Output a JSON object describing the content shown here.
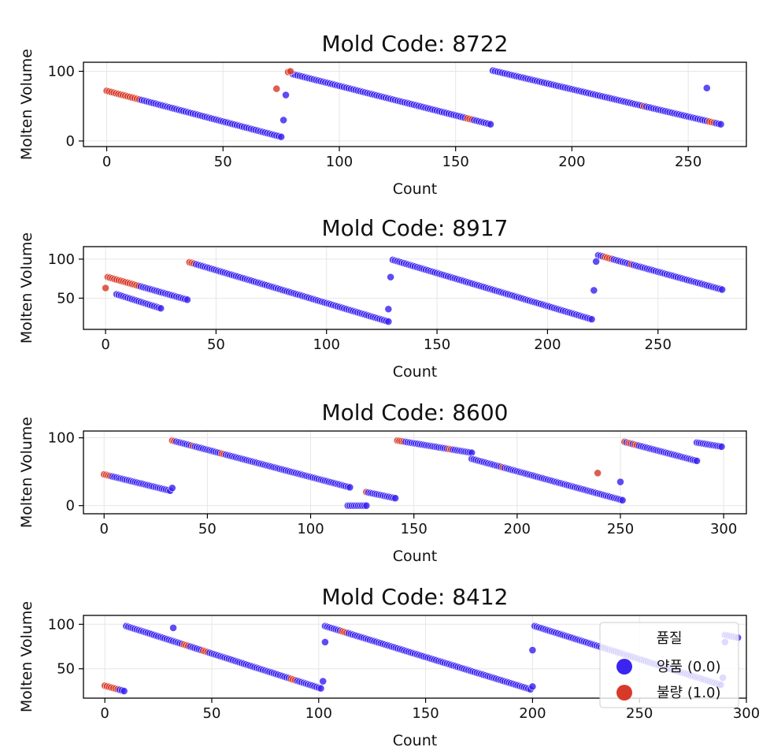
{
  "legend": {
    "title": "품질",
    "entries": [
      {
        "label": "양품 (0.0)",
        "color": "#3b24f0"
      },
      {
        "label": "불량 (1.0)",
        "color": "#d83a2a"
      }
    ]
  },
  "colors": {
    "good": "#3b24f0",
    "bad": "#d83a2a"
  },
  "chart_data": [
    {
      "type": "scatter",
      "title": "Mold Code: 8722",
      "xlabel": "Count",
      "ylabel": "Molten Volume",
      "xlim": [
        -10,
        275
      ],
      "ylim": [
        -8,
        113
      ],
      "xticks": [
        0,
        50,
        100,
        150,
        200,
        250
      ],
      "yticks": [
        0,
        100
      ],
      "grid": true,
      "segments": [
        {
          "x_start": 0,
          "x_end": 75,
          "y_start": 72,
          "y_end": 6,
          "defect_at": [
            0,
            1,
            2,
            3,
            4,
            5,
            6,
            7,
            8,
            9,
            10,
            11,
            12,
            13,
            14
          ]
        },
        {
          "x_start": 80,
          "x_end": 165,
          "y_start": 96,
          "y_end": 24,
          "defect_at": [
            155,
            156,
            157
          ]
        },
        {
          "x_start": 166,
          "x_end": 264,
          "y_start": 101,
          "y_end": 24,
          "defect_at": [
            231,
            259,
            260,
            261
          ]
        }
      ],
      "points": [
        {
          "x": 73,
          "y": 75,
          "defect": 1
        },
        {
          "x": 76,
          "y": 30,
          "defect": 0
        },
        {
          "x": 77,
          "y": 66,
          "defect": 0
        },
        {
          "x": 78,
          "y": 99,
          "defect": 1
        },
        {
          "x": 79,
          "y": 100,
          "defect": 1
        },
        {
          "x": 258,
          "y": 76,
          "defect": 0
        }
      ]
    },
    {
      "type": "scatter",
      "title": "Mold Code: 8917",
      "xlabel": "Count",
      "ylabel": "Molten Volume",
      "xlim": [
        -10,
        290
      ],
      "ylim": [
        10,
        116
      ],
      "xticks": [
        0,
        50,
        100,
        150,
        200,
        250
      ],
      "yticks": [
        50,
        100
      ],
      "grid": true,
      "segments": [
        {
          "x_start": 1,
          "x_end": 37,
          "y_start": 77,
          "y_end": 48,
          "defect_at": [
            1,
            2,
            3,
            4,
            5,
            6,
            7,
            8,
            9,
            10,
            11,
            12,
            13,
            14,
            15
          ]
        },
        {
          "x_start": 5,
          "x_end": 25,
          "y_start": 55,
          "y_end": 37,
          "defect_at": []
        },
        {
          "x_start": 38,
          "x_end": 128,
          "y_start": 96,
          "y_end": 20,
          "defect_at": [
            38,
            39,
            40
          ]
        },
        {
          "x_start": 130,
          "x_end": 220,
          "y_start": 99,
          "y_end": 23,
          "defect_at": []
        },
        {
          "x_start": 223,
          "x_end": 279,
          "y_start": 105,
          "y_end": 61,
          "defect_at": [
            226,
            227,
            228,
            229,
            238
          ]
        }
      ],
      "points": [
        {
          "x": 0,
          "y": 63,
          "defect": 1
        },
        {
          "x": 128,
          "y": 36,
          "defect": 0
        },
        {
          "x": 129,
          "y": 77,
          "defect": 0
        },
        {
          "x": 221,
          "y": 60,
          "defect": 0
        },
        {
          "x": 222,
          "y": 97,
          "defect": 0
        }
      ]
    },
    {
      "type": "scatter",
      "title": "Mold Code: 8600",
      "xlabel": "Count",
      "ylabel": "Molten Volume",
      "xlim": [
        -10,
        311
      ],
      "ylim": [
        -12,
        110
      ],
      "xticks": [
        0,
        50,
        100,
        150,
        200,
        250,
        300
      ],
      "yticks": [
        0,
        100
      ],
      "grid": true,
      "segments": [
        {
          "x_start": 0,
          "x_end": 32,
          "y_start": 46,
          "y_end": 22,
          "defect_at": [
            0,
            1,
            2,
            3
          ]
        },
        {
          "x_start": 33,
          "x_end": 119,
          "y_start": 96,
          "y_end": 27,
          "defect_at": [
            33,
            34,
            43,
            57,
            58
          ]
        },
        {
          "x_start": 118,
          "x_end": 127,
          "y_start": 0,
          "y_end": 0,
          "defect_at": []
        },
        {
          "x_start": 127,
          "x_end": 141,
          "y_start": 20,
          "y_end": 11,
          "defect_at": [
            127
          ]
        },
        {
          "x_start": 142,
          "x_end": 178,
          "y_start": 96,
          "y_end": 78,
          "defect_at": [
            142,
            143,
            144,
            145,
            167,
            168
          ]
        },
        {
          "x_start": 178,
          "x_end": 251,
          "y_start": 69,
          "y_end": 8,
          "defect_at": [
            193
          ]
        },
        {
          "x_start": 252,
          "x_end": 287,
          "y_start": 94,
          "y_end": 66,
          "defect_at": [
            252,
            254,
            255,
            257,
            258
          ]
        },
        {
          "x_start": 287,
          "x_end": 299,
          "y_start": 93,
          "y_end": 87,
          "defect_at": []
        }
      ],
      "points": [
        {
          "x": 33,
          "y": 26,
          "defect": 0
        },
        {
          "x": 239,
          "y": 48,
          "defect": 1
        },
        {
          "x": 250,
          "y": 35,
          "defect": 0
        }
      ]
    },
    {
      "type": "scatter",
      "title": "Mold Code: 8412",
      "xlabel": "Count",
      "ylabel": "Molten Volume",
      "xlim": [
        -10,
        300
      ],
      "ylim": [
        17,
        110
      ],
      "xticks": [
        0,
        50,
        100,
        150,
        200,
        250,
        300
      ],
      "yticks": [
        50,
        100
      ],
      "grid": true,
      "legend_position": "lower right",
      "segments": [
        {
          "x_start": 0,
          "x_end": 9,
          "y_start": 31,
          "y_end": 25,
          "defect_at": [
            0,
            1,
            2,
            3,
            4,
            5,
            6
          ]
        },
        {
          "x_start": 10,
          "x_end": 101,
          "y_start": 98,
          "y_end": 28,
          "defect_at": [
            37,
            38,
            39,
            46,
            47,
            48,
            87,
            88,
            89
          ]
        },
        {
          "x_start": 103,
          "x_end": 199,
          "y_start": 98,
          "y_end": 27,
          "defect_at": [
            111,
            112,
            113
          ]
        },
        {
          "x_start": 201,
          "x_end": 288,
          "y_start": 98,
          "y_end": 32,
          "defect_at": [
            262
          ]
        },
        {
          "x_start": 290,
          "x_end": 296,
          "y_start": 88,
          "y_end": 85,
          "defect_at": []
        }
      ],
      "points": [
        {
          "x": 32,
          "y": 96,
          "defect": 0
        },
        {
          "x": 102,
          "y": 36,
          "defect": 0
        },
        {
          "x": 103,
          "y": 80,
          "defect": 0
        },
        {
          "x": 200,
          "y": 30,
          "defect": 0
        },
        {
          "x": 200,
          "y": 71,
          "defect": 0
        },
        {
          "x": 289,
          "y": 40,
          "defect": 0
        },
        {
          "x": 290,
          "y": 80,
          "defect": 0
        }
      ]
    }
  ]
}
